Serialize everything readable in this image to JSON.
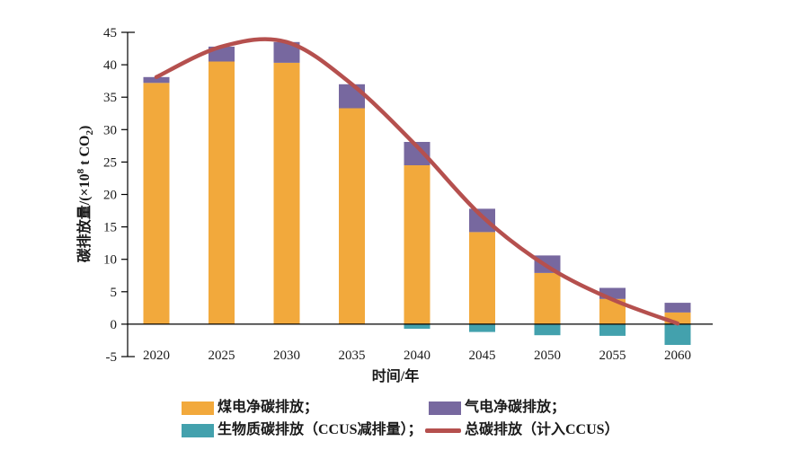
{
  "chart_data": {
    "type": "bar",
    "stacked": true,
    "grid": false,
    "legend_position": "bottom",
    "categories": [
      "2020",
      "2025",
      "2030",
      "2035",
      "2040",
      "2045",
      "2050",
      "2055",
      "2060"
    ],
    "series": [
      {
        "name": "煤电净碳排放",
        "color": "#F2A93C",
        "values": [
          37.2,
          40.5,
          40.3,
          33.3,
          24.5,
          14.2,
          7.9,
          3.9,
          1.8
        ]
      },
      {
        "name": "气电净碳排放",
        "color": "#77689F",
        "values": [
          0.9,
          2.3,
          3.2,
          3.7,
          3.6,
          3.6,
          2.7,
          1.7,
          1.5
        ]
      },
      {
        "name": "生物质碳排放（CCUS减排量）",
        "color": "#43A1AD",
        "values": [
          0,
          0,
          0,
          0,
          -0.7,
          -1.2,
          -1.7,
          -1.8,
          -3.2
        ]
      }
    ],
    "line_series": {
      "name": "总碳排放（计入CCUS）",
      "color": "#B5504E",
      "values": [
        38.1,
        42.8,
        43.5,
        37.0,
        27.4,
        16.6,
        8.9,
        3.8,
        0.1
      ]
    },
    "xlabel": "时间/年",
    "ylabel": "碳排放量/(×10⁸ t CO₂)",
    "ylabel_parts": {
      "pre": "碳排放量/(×10",
      "sup": "8",
      "mid": " t CO",
      "sub": "2",
      "post": ")"
    },
    "ylim": [
      -5,
      45
    ],
    "yticks": [
      -5,
      0,
      5,
      10,
      15,
      20,
      25,
      30,
      35,
      40,
      45
    ],
    "axis_color": "#000000",
    "text_color": "#1a1a1a"
  },
  "legend": {
    "items": [
      {
        "id": "coal",
        "label": "煤电净碳排放；",
        "type": "swatch",
        "color": "#F2A93C"
      },
      {
        "id": "gas",
        "label": "气电净碳排放；",
        "type": "swatch",
        "color": "#77689F"
      },
      {
        "id": "bio",
        "label": "生物质碳排放（CCUS减排量）；",
        "type": "swatch",
        "color": "#43A1AD"
      },
      {
        "id": "total",
        "label": "总碳排放（计入CCUS）",
        "type": "line",
        "color": "#B5504E"
      }
    ]
  }
}
